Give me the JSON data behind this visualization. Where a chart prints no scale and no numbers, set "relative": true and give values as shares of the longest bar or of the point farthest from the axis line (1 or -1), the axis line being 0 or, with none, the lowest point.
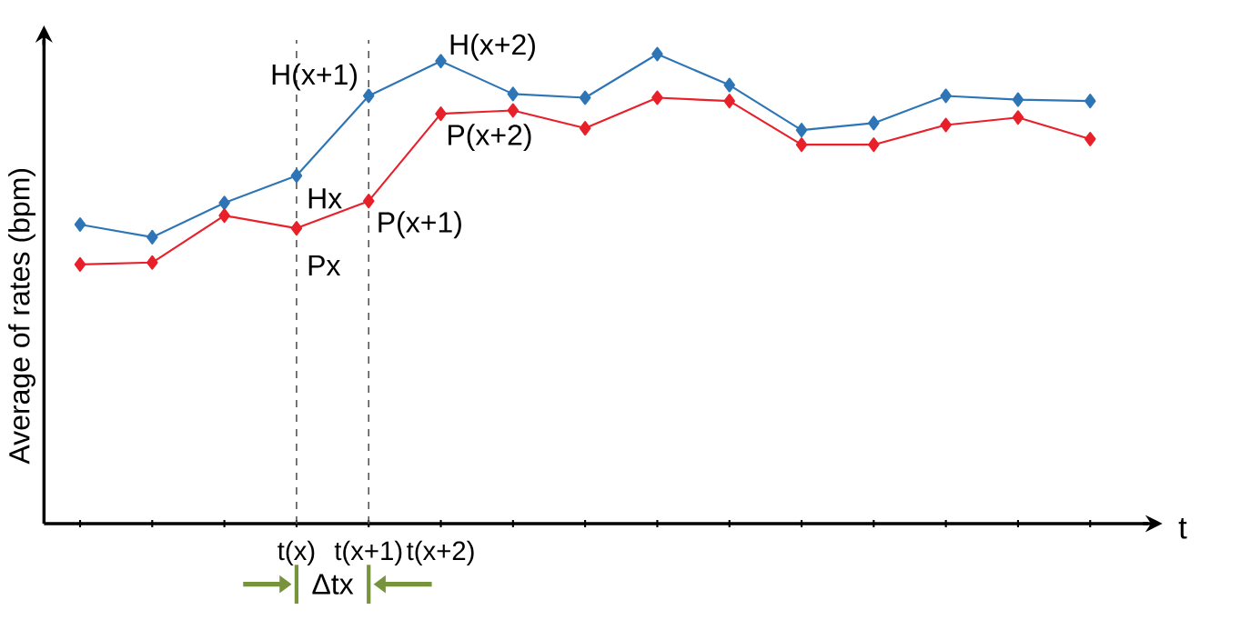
{
  "chart_data": {
    "type": "line",
    "relative": true,
    "ylabel": "Average of rates (bpm)",
    "xlabel": "t",
    "categories": [
      null,
      null,
      null,
      "t(x)",
      "t(x+1)",
      "t(x+2)",
      null,
      null,
      null,
      null,
      null,
      null,
      null,
      null,
      null
    ],
    "marker": "diamond",
    "grid": false,
    "series": [
      {
        "color": "#2e75b6",
        "values": [
          0.637,
          0.61,
          0.683,
          0.741,
          0.911,
          0.985,
          0.915,
          0.907,
          1,
          0.934,
          0.838,
          0.853,
          0.911,
          0.903,
          0.9
        ]
      },
      {
        "color": "#e8202a",
        "values": [
          0.552,
          0.556,
          0.656,
          0.629,
          0.687,
          0.873,
          0.88,
          0.842,
          0.907,
          0.9,
          0.807,
          0.807,
          0.849,
          0.865,
          0.819
        ]
      }
    ],
    "ref_lines": [
      {
        "axis": "x",
        "value": "t(x)",
        "line_style": "dashed",
        "color": "#555555"
      },
      {
        "axis": "x",
        "value": "t(x+1)",
        "line_style": "dashed",
        "color": "#555555"
      }
    ],
    "annotations": [
      {
        "text": "Hx",
        "x": "t(x)",
        "y": 0.741
      },
      {
        "text": "Px",
        "x": "t(x)",
        "y": 0.629
      },
      {
        "text": "H(x+1)",
        "x": "t(x+1)",
        "y": 0.911
      },
      {
        "text": "P(x+1)",
        "x": "t(x+1)",
        "y": 0.687
      },
      {
        "text": "H(x+2)",
        "x": "t(x+2)",
        "y": 0.985
      },
      {
        "text": "P(x+2)",
        "x": "t(x+2)",
        "y": 0.873
      },
      "Δtx"
    ]
  }
}
